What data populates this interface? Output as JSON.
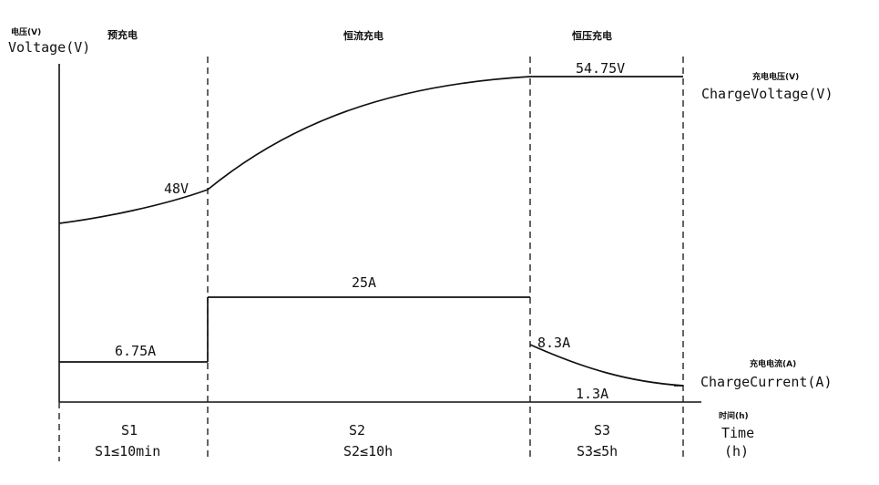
{
  "colors": {
    "ink": "#111111",
    "background": "#ffffff"
  },
  "labels": {
    "voltage_axis_cn": "电压(V)",
    "voltage_axis_en": "Voltage(V)",
    "charge_voltage_cn": "充电电压(V)",
    "charge_voltage_en": "ChargeVoltage(V)",
    "charge_current_cn": "充电电流(A)",
    "charge_current_en": "ChargeCurrent(A)",
    "time_cn": "时间(h)",
    "time_en": "Time",
    "time_unit": "(h)"
  },
  "phases": [
    {
      "title": "预充电",
      "stage": "S1",
      "limit": "S1≤10min"
    },
    {
      "title": "恒流充电",
      "stage": "S2",
      "limit": "S2≤10h"
    },
    {
      "title": "恒压充电",
      "stage": "S3",
      "limit": "S3≤5h"
    }
  ],
  "annotations": {
    "v48": "48V",
    "v5475": "54.75V",
    "a675": "6.75A",
    "a25": "25A",
    "a83": "8.3A",
    "a13": "1.3A"
  },
  "chart_data": {
    "type": "line",
    "title": "",
    "xlabel": "Time (h)",
    "ylabel": "Voltage(V)",
    "phase_limits": [
      "S1≤10min",
      "S2≤10h",
      "S3≤5h"
    ],
    "voltage_profile": [
      {
        "stage": "S1",
        "value": 48,
        "unit": "V"
      },
      {
        "stage": "S3",
        "value": 54.75,
        "unit": "V"
      }
    ],
    "current_profile": [
      {
        "stage": "S1",
        "value": 6.75,
        "unit": "A"
      },
      {
        "stage": "S2",
        "value": 25,
        "unit": "A"
      },
      {
        "stage": "S3",
        "start": 8.3,
        "end": 1.3,
        "unit": "A"
      }
    ],
    "grid": false,
    "legend": "none"
  }
}
